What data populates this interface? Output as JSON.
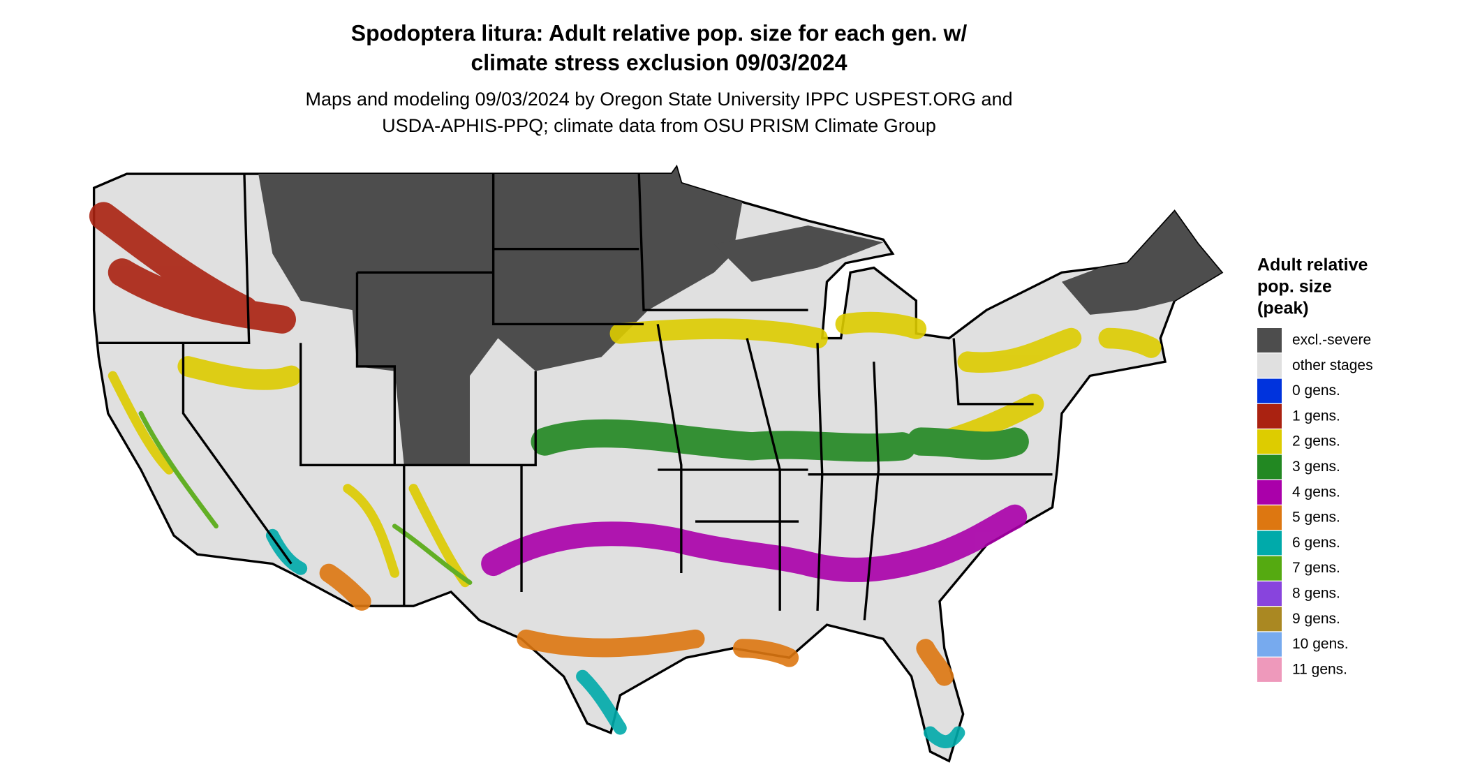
{
  "header": {
    "title": [
      "Spodoptera litura: Adult relative pop. size for each gen. w/",
      "climate stress exclusion 09/03/2024"
    ],
    "subtitle": [
      "Maps and modeling 09/03/2024 by Oregon State University IPPC USPEST.ORG and",
      "USDA-APHIS-PPQ; climate data from OSU PRISM Climate Group"
    ]
  },
  "legend": {
    "title": [
      "Adult relative",
      "pop. size",
      "(peak)"
    ],
    "items": [
      {
        "label": "excl.-severe",
        "color": "#4d4d4d"
      },
      {
        "label": "other stages",
        "color": "#e0e0e0"
      },
      {
        "label": "0 gens.",
        "color": "#0033dd"
      },
      {
        "label": "1 gens.",
        "color": "#aa2211"
      },
      {
        "label": "2 gens.",
        "color": "#ddcc00"
      },
      {
        "label": "3 gens.",
        "color": "#228822"
      },
      {
        "label": "4 gens.",
        "color": "#aa00aa"
      },
      {
        "label": "5 gens.",
        "color": "#dd7711"
      },
      {
        "label": "6 gens.",
        "color": "#00aaaa"
      },
      {
        "label": "7 gens.",
        "color": "#55aa11"
      },
      {
        "label": "8 gens.",
        "color": "#8844dd"
      },
      {
        "label": "9 gens.",
        "color": "#aa8822"
      },
      {
        "label": "10 gens.",
        "color": "#77aaee"
      },
      {
        "label": "11 gens.",
        "color": "#ee99bb"
      }
    ]
  }
}
